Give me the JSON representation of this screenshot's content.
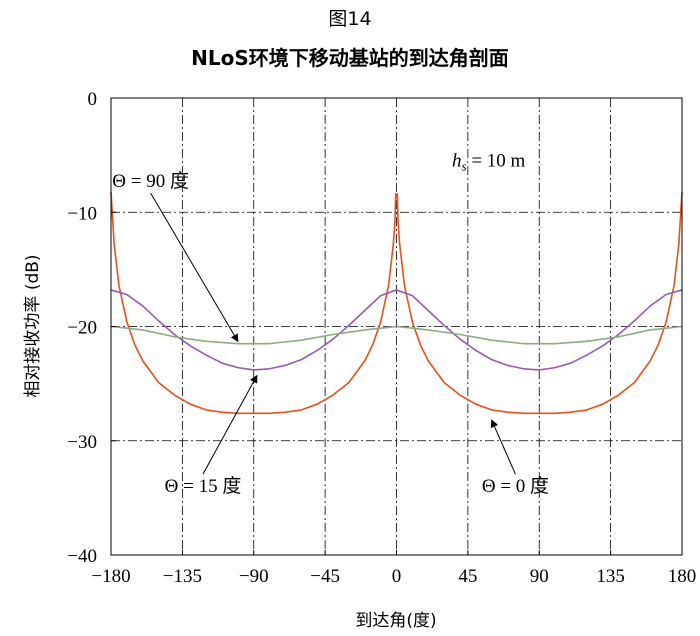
{
  "figure_label": "图14",
  "chart_data": {
    "type": "line",
    "title": "NLoS环境下移动基站的到达角剖面",
    "xlabel": "到达角(度)",
    "ylabel": "相对接收功率 (dB)",
    "xlim": [
      -180,
      180
    ],
    "ylim": [
      -40,
      0
    ],
    "xticks": [
      -180,
      -135,
      -90,
      -45,
      0,
      45,
      90,
      135,
      180
    ],
    "xtick_labels": [
      "−180",
      "−135",
      "−90",
      "−45",
      "0",
      "45",
      "90",
      "135",
      "180"
    ],
    "yticks": [
      0,
      -10,
      -20,
      -30,
      -40
    ],
    "ytick_labels": [
      "0",
      "−10",
      "−20",
      "−30",
      "−40"
    ],
    "grid": "dash-dot",
    "series": [
      {
        "name": "Θ = 0 度",
        "color": "#e8501c",
        "x": [
          -180,
          -178,
          -175,
          -170,
          -165,
          -160,
          -150,
          -140,
          -130,
          -120,
          -110,
          -100,
          -90,
          -80,
          -70,
          -60,
          -50,
          -40,
          -30,
          -20,
          -15,
          -10,
          -5,
          -2,
          -1,
          -0.5,
          0.5,
          1,
          2,
          5,
          10,
          15,
          20,
          30,
          40,
          50,
          60,
          70,
          80,
          90,
          100,
          110,
          120,
          130,
          140,
          150,
          160,
          165,
          170,
          175,
          178,
          180
        ],
        "y": [
          -8.2,
          -12.8,
          -16.4,
          -19.6,
          -21.6,
          -23.0,
          -24.9,
          -26.0,
          -26.8,
          -27.3,
          -27.5,
          -27.6,
          -27.6,
          -27.6,
          -27.5,
          -27.3,
          -26.8,
          -26.0,
          -24.9,
          -23.0,
          -21.6,
          -19.6,
          -16.4,
          -12.8,
          -10.8,
          -8.4,
          -8.4,
          -10.8,
          -12.8,
          -16.4,
          -19.6,
          -21.6,
          -23.0,
          -24.9,
          -26.0,
          -26.8,
          -27.3,
          -27.5,
          -27.6,
          -27.6,
          -27.6,
          -27.5,
          -27.3,
          -26.8,
          -26.0,
          -24.9,
          -23.0,
          -21.6,
          -19.6,
          -16.4,
          -12.8,
          -8.2
        ]
      },
      {
        "name": "Θ = 15 度",
        "color": "#9b59b6",
        "x": [
          -180,
          -170,
          -160,
          -150,
          -140,
          -130,
          -120,
          -110,
          -100,
          -90,
          -80,
          -70,
          -60,
          -50,
          -40,
          -30,
          -20,
          -10,
          0,
          10,
          20,
          30,
          40,
          50,
          60,
          70,
          80,
          90,
          100,
          110,
          120,
          130,
          140,
          150,
          160,
          170,
          180
        ],
        "y": [
          -16.8,
          -17.2,
          -18.2,
          -19.5,
          -20.7,
          -21.7,
          -22.5,
          -23.2,
          -23.6,
          -23.8,
          -23.7,
          -23.4,
          -22.9,
          -22.1,
          -21.1,
          -19.9,
          -18.6,
          -17.3,
          -16.8,
          -17.3,
          -18.6,
          -19.9,
          -21.1,
          -22.1,
          -22.9,
          -23.4,
          -23.7,
          -23.8,
          -23.6,
          -23.2,
          -22.5,
          -21.7,
          -20.7,
          -19.5,
          -18.2,
          -17.2,
          -16.8
        ]
      },
      {
        "name": "Θ = 90 度",
        "color": "#8aae7c",
        "x": [
          -180,
          -160,
          -140,
          -120,
          -100,
          -90,
          -80,
          -60,
          -40,
          -20,
          0,
          20,
          40,
          60,
          80,
          90,
          100,
          120,
          140,
          160,
          180
        ],
        "y": [
          -20.0,
          -20.3,
          -20.9,
          -21.3,
          -21.5,
          -21.5,
          -21.5,
          -21.2,
          -20.7,
          -20.3,
          -20.0,
          -20.3,
          -20.7,
          -21.2,
          -21.5,
          -21.5,
          -21.5,
          -21.3,
          -20.9,
          -20.3,
          -20.0
        ]
      }
    ],
    "annotations": [
      {
        "text": "Θ = 90 度",
        "text_x": -155,
        "text_y": -7.8,
        "arrow_to_x": -100,
        "arrow_to_y": -21.3
      },
      {
        "text": "Θ = 15 度",
        "text_x": -122,
        "text_y": -34.5,
        "arrow_to_x": -88,
        "arrow_to_y": -24.3
      },
      {
        "text": "Θ = 0 度",
        "text_x": 75,
        "text_y": -34.5,
        "arrow_to_x": 60,
        "arrow_to_y": -28.2
      }
    ],
    "param_label": {
      "var": "h",
      "sub": "s",
      "rest": " = 10 m"
    }
  }
}
